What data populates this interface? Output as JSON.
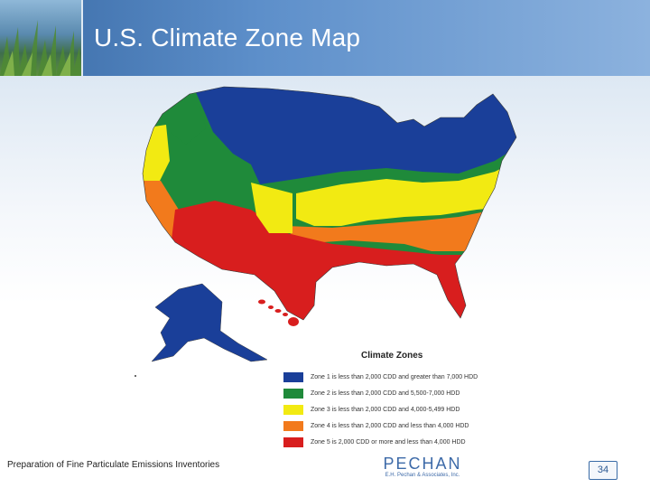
{
  "slide": {
    "title": "U.S. Climate Zone Map",
    "footer_text": "Preparation of Fine Particulate Emissions Inventories",
    "page_number": "34"
  },
  "logo": {
    "name": "PECHAN",
    "subtitle": "E.H. Pechan & Associates, Inc."
  },
  "legend": {
    "title": "Climate Zones",
    "items": [
      {
        "label": "Zone 1 is less than 2,000 CDD and greater than 7,000 HDD",
        "color": "#1a3f99"
      },
      {
        "label": "Zone 2 is less than 2,000 CDD and 5,500-7,000 HDD",
        "color": "#1f8a3a"
      },
      {
        "label": "Zone 3 is less than 2,000 CDD and 4,000-5,499 HDD",
        "color": "#f2ea12"
      },
      {
        "label": "Zone 4 is less than 2,000 CDD and less than 4,000 HDD",
        "color": "#f27a1c"
      },
      {
        "label": "Zone 5 is 2,000 CDD or more and less than 4,000 HDD",
        "color": "#d81e1e"
      }
    ]
  },
  "header_colors": {
    "primary": "#3a6ba6",
    "light": "#8cb2de"
  }
}
